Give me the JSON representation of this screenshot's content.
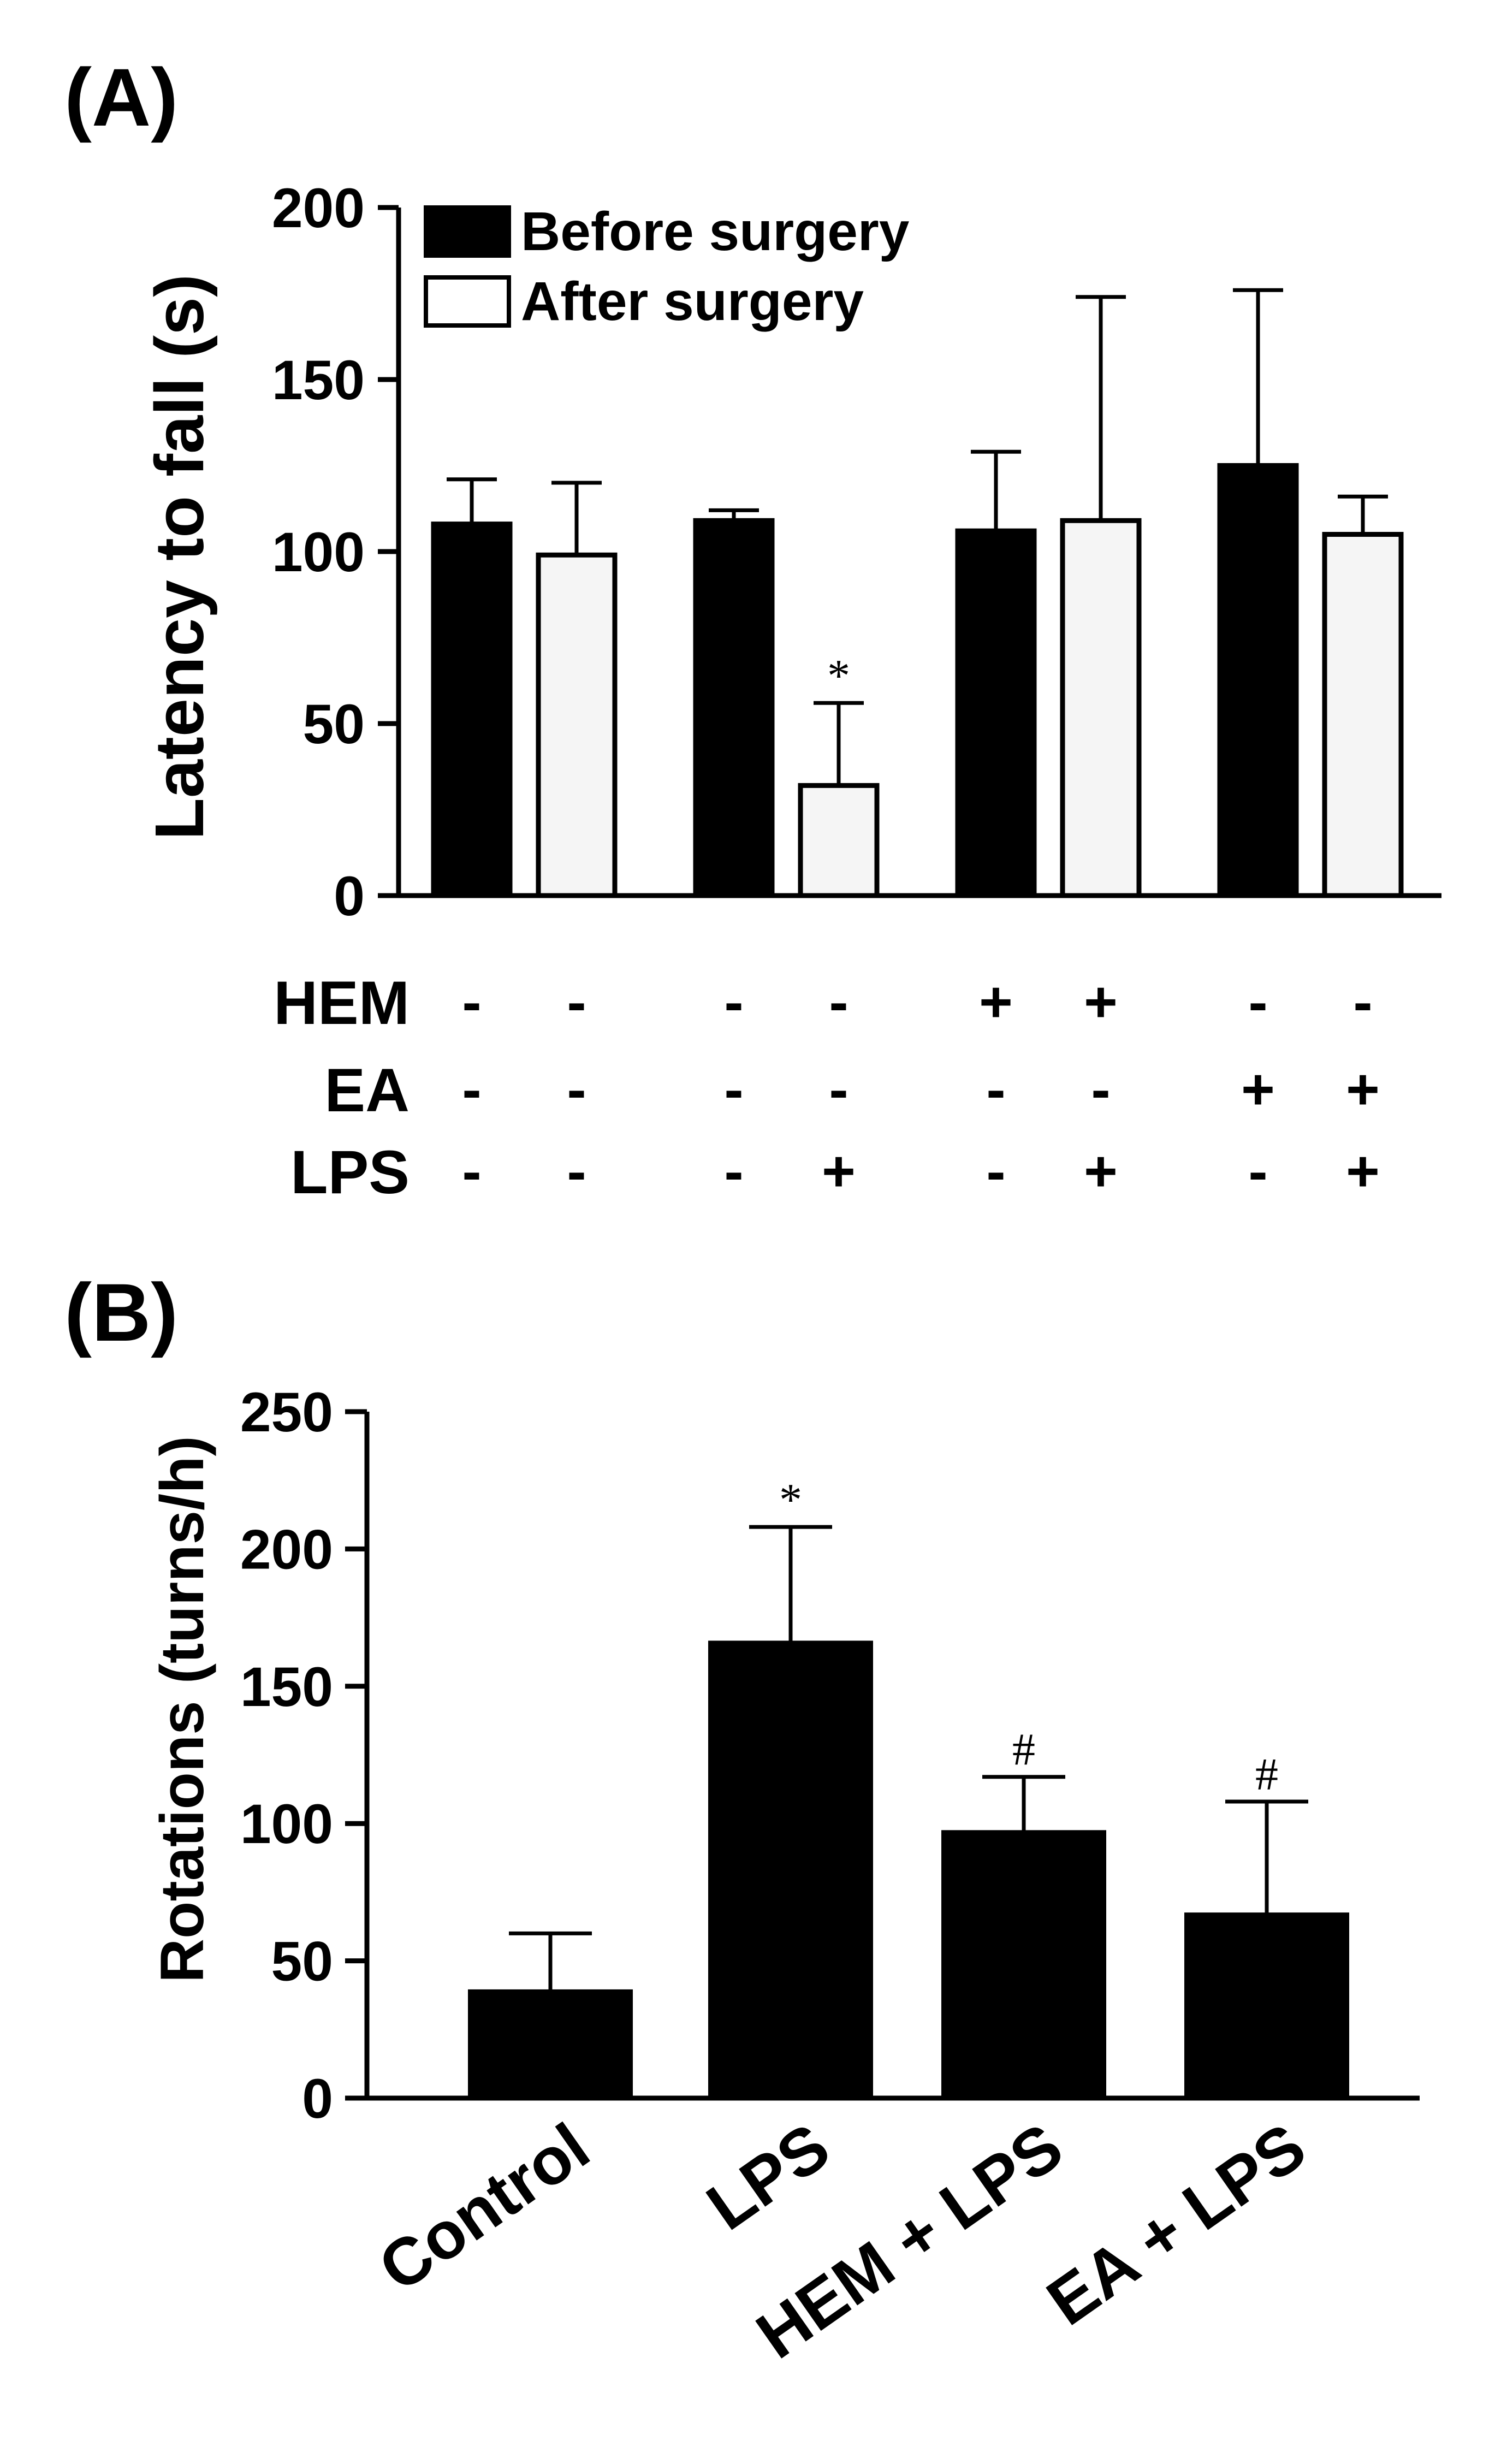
{
  "chart_data": [
    {
      "panel_label": "(A)",
      "type": "bar",
      "ylabel": "Latency to fall (s)",
      "ylim": [
        0,
        200
      ],
      "yticks": [
        0,
        50,
        100,
        150,
        200
      ],
      "yticks_text": [
        "0",
        "50",
        "100",
        "150",
        "200"
      ],
      "legend_position": "top-left",
      "series": [
        {
          "name": "Before surgery",
          "color": "#000000",
          "values": [
            108,
            109,
            106,
            125
          ],
          "errors": [
            13,
            3,
            23,
            51
          ],
          "sig": [
            "",
            "",
            "",
            ""
          ]
        },
        {
          "name": "After surgery",
          "color": "#f5f5f5",
          "values": [
            99,
            32,
            109,
            105
          ],
          "errors": [
            21,
            24,
            65,
            11
          ],
          "sig": [
            "",
            "*",
            "",
            ""
          ]
        }
      ],
      "conditions": [
        {
          "label": "HEM",
          "signs": [
            "-",
            "-",
            "-",
            "-",
            "+",
            "+",
            "-",
            "-"
          ]
        },
        {
          "label": "EA",
          "signs": [
            "-",
            "-",
            "-",
            "-",
            "-",
            "-",
            "+",
            "+"
          ]
        },
        {
          "label": "LPS",
          "signs": [
            "-",
            "-",
            "-",
            "+",
            "-",
            "+",
            "-",
            "+"
          ]
        }
      ]
    },
    {
      "panel_label": "(B)",
      "type": "bar",
      "ylabel": "Rotations (turns/h)",
      "ylim": [
        0,
        250
      ],
      "yticks": [
        0,
        50,
        100,
        150,
        200,
        250
      ],
      "yticks_text": [
        "0",
        "50",
        "100",
        "150",
        "200",
        "250"
      ],
      "categories": [
        "Control",
        "LPS",
        "HEM + LPS",
        "EA + LPS"
      ],
      "values": [
        39,
        166,
        97,
        67
      ],
      "errors": [
        21,
        42,
        20,
        41
      ],
      "sig": [
        "",
        "*",
        "#",
        "#"
      ],
      "color": "#000000"
    }
  ]
}
